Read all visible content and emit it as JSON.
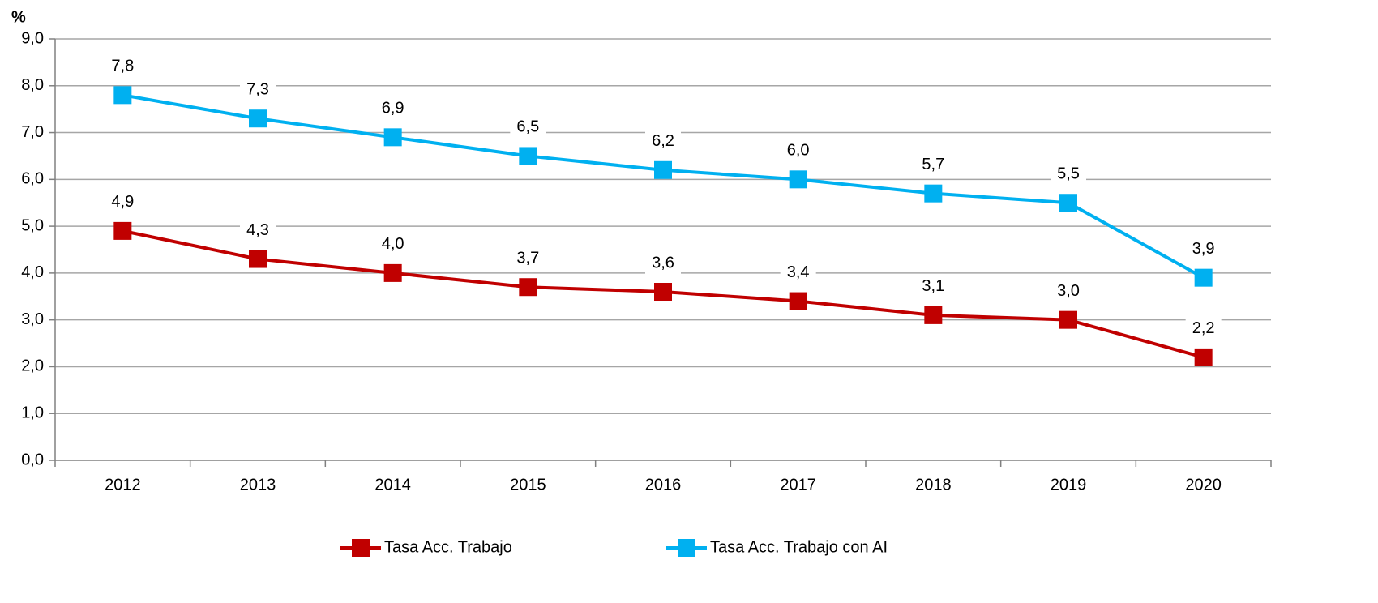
{
  "chart_data": {
    "type": "line",
    "ylabel": "%",
    "categories": [
      "2012",
      "2013",
      "2014",
      "2015",
      "2016",
      "2017",
      "2018",
      "2019",
      "2020"
    ],
    "series": [
      {
        "name": "Tasa Acc. Trabajo",
        "color": "#c00000",
        "values": [
          4.9,
          4.3,
          4.0,
          3.7,
          3.6,
          3.4,
          3.1,
          3.0,
          2.2
        ],
        "value_labels": [
          "4,9",
          "4,3",
          "4,0",
          "3,7",
          "3,6",
          "3,4",
          "3,1",
          "3,0",
          "2,2"
        ]
      },
      {
        "name": "Tasa Acc. Trabajo con AI",
        "color": "#00b0f0",
        "values": [
          7.8,
          7.3,
          6.9,
          6.5,
          6.2,
          6.0,
          5.7,
          5.5,
          3.9
        ],
        "value_labels": [
          "7,8",
          "7,3",
          "6,9",
          "6,5",
          "6,2",
          "6,0",
          "5,7",
          "5,5",
          "3,9"
        ]
      }
    ],
    "ylim": [
      0,
      9
    ],
    "yticks": [
      {
        "value": 0,
        "label": "0,0"
      },
      {
        "value": 1,
        "label": "1,0"
      },
      {
        "value": 2,
        "label": "2,0"
      },
      {
        "value": 3,
        "label": "3,0"
      },
      {
        "value": 4,
        "label": "4,0"
      },
      {
        "value": 5,
        "label": "5,0"
      },
      {
        "value": 6,
        "label": "6,0"
      },
      {
        "value": 7,
        "label": "7,0"
      },
      {
        "value": 8,
        "label": "8,0"
      },
      {
        "value": 9,
        "label": "9,0"
      }
    ],
    "grid": true,
    "legend": "bottom"
  }
}
